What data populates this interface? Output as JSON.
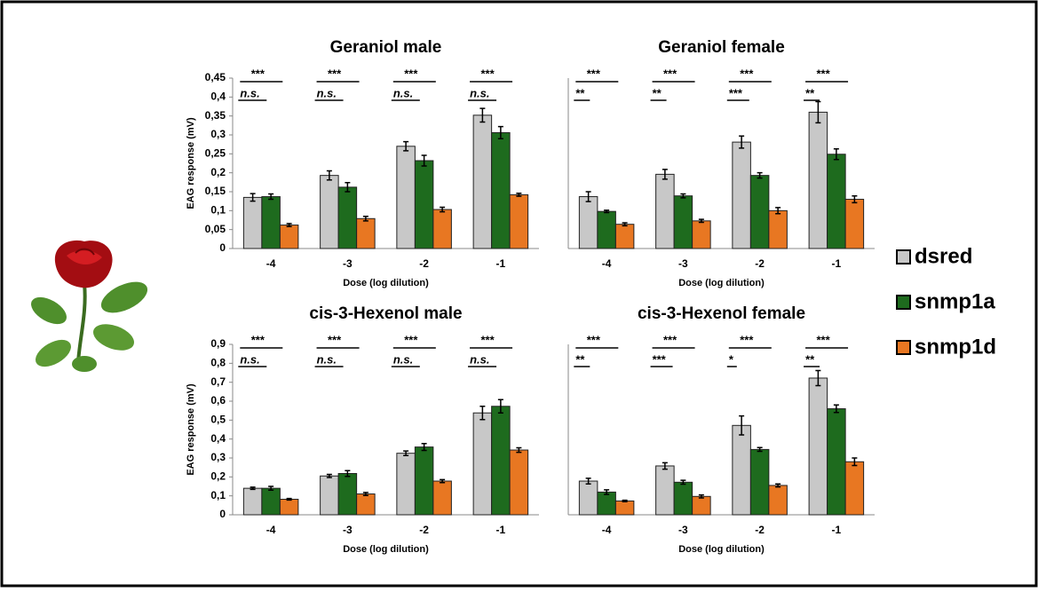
{
  "chart_data": [
    {
      "type": "bar",
      "title": "Geraniol  male",
      "ylabel": "EAG response (mV)",
      "xlabel": "Dose (log dilution)",
      "categories": [
        "-4",
        "-3",
        "-2",
        "-1"
      ],
      "ylim": [
        0,
        0.45
      ],
      "yticks": [
        0,
        {
          "value": 0.05,
          "label": "0,05"
        },
        {
          "value": 0.1,
          "label": "0,1"
        },
        {
          "value": 0.15,
          "label": "0,15"
        },
        {
          "value": 0.2,
          "label": "0,2"
        },
        {
          "value": 0.25,
          "label": "0,25"
        },
        {
          "value": 0.3,
          "label": "0,3"
        },
        {
          "value": 0.35,
          "label": "0,35"
        },
        {
          "value": 0.4,
          "label": "0,4"
        },
        {
          "value": 0.45,
          "label": "0,45"
        }
      ],
      "series": [
        {
          "name": "dsred",
          "color": "#c8c8c8",
          "values": [
            0.135,
            0.193,
            0.27,
            0.352
          ],
          "errors": [
            0.01,
            0.012,
            0.012,
            0.018
          ]
        },
        {
          "name": "snmp1a",
          "color": "#1e6b1e",
          "values": [
            0.137,
            0.162,
            0.232,
            0.306
          ],
          "errors": [
            0.007,
            0.012,
            0.014,
            0.016
          ]
        },
        {
          "name": "snmp1d",
          "color": "#e87722",
          "values": [
            0.062,
            0.079,
            0.103,
            0.142
          ],
          "errors": [
            0.004,
            0.006,
            0.006,
            0.004
          ]
        }
      ],
      "significance": [
        [
          "***",
          "n.s."
        ],
        [
          "***",
          "n.s."
        ],
        [
          "***",
          "n.s."
        ],
        [
          "***",
          "n.s."
        ]
      ]
    },
    {
      "type": "bar",
      "title": "Geraniol  female",
      "xlabel": "Dose (log dilution)",
      "categories": [
        "-4",
        "-3",
        "-2",
        "-1"
      ],
      "ylim": [
        0,
        0.45
      ],
      "series": [
        {
          "name": "dsred",
          "color": "#c8c8c8",
          "values": [
            0.137,
            0.196,
            0.281,
            0.36
          ],
          "errors": [
            0.013,
            0.013,
            0.016,
            0.028
          ]
        },
        {
          "name": "snmp1a",
          "color": "#1e6b1e",
          "values": [
            0.098,
            0.139,
            0.193,
            0.249
          ],
          "errors": [
            0.003,
            0.005,
            0.007,
            0.014
          ]
        },
        {
          "name": "snmp1d",
          "color": "#e87722",
          "values": [
            0.064,
            0.073,
            0.1,
            0.13
          ],
          "errors": [
            0.004,
            0.004,
            0.008,
            0.009
          ]
        }
      ],
      "significance": [
        [
          "***",
          "**"
        ],
        [
          "***",
          "**"
        ],
        [
          "***",
          "***"
        ],
        [
          "***",
          "**"
        ]
      ]
    },
    {
      "type": "bar",
      "title": "cis-3-Hexenol  male",
      "ylabel": "EAG response (mV)",
      "xlabel": "Dose (log dilution)",
      "categories": [
        "-4",
        "-3",
        "-2",
        "-1"
      ],
      "ylim": [
        0,
        0.9
      ],
      "yticks": [
        0,
        {
          "value": 0.1,
          "label": "0,1"
        },
        {
          "value": 0.2,
          "label": "0,2"
        },
        {
          "value": 0.3,
          "label": "0,3"
        },
        {
          "value": 0.4,
          "label": "0,4"
        },
        {
          "value": 0.5,
          "label": "0,5"
        },
        {
          "value": 0.6,
          "label": "0,6"
        },
        {
          "value": 0.7,
          "label": "0,7"
        },
        {
          "value": 0.8,
          "label": "0,8"
        },
        {
          "value": 0.9,
          "label": "0,9"
        }
      ],
      "series": [
        {
          "name": "dsred",
          "color": "#c8c8c8",
          "values": [
            0.14,
            0.205,
            0.325,
            0.538
          ],
          "errors": [
            0.006,
            0.008,
            0.012,
            0.035
          ]
        },
        {
          "name": "snmp1a",
          "color": "#1e6b1e",
          "values": [
            0.14,
            0.218,
            0.358,
            0.573
          ],
          "errors": [
            0.01,
            0.015,
            0.018,
            0.035
          ]
        },
        {
          "name": "snmp1d",
          "color": "#e87722",
          "values": [
            0.082,
            0.11,
            0.178,
            0.342
          ],
          "errors": [
            0.004,
            0.008,
            0.008,
            0.012
          ]
        }
      ],
      "significance": [
        [
          "***",
          "n.s."
        ],
        [
          "***",
          "n.s."
        ],
        [
          "***",
          "n.s."
        ],
        [
          "***",
          "n.s."
        ]
      ]
    },
    {
      "type": "bar",
      "title": "cis-3-Hexenol  female",
      "xlabel": "Dose (log dilution)",
      "categories": [
        "-4",
        "-3",
        "-2",
        "-1"
      ],
      "ylim": [
        0,
        0.9
      ],
      "series": [
        {
          "name": "dsred",
          "color": "#c8c8c8",
          "values": [
            0.178,
            0.258,
            0.472,
            0.722
          ],
          "errors": [
            0.015,
            0.017,
            0.05,
            0.04
          ]
        },
        {
          "name": "snmp1a",
          "color": "#1e6b1e",
          "values": [
            0.12,
            0.172,
            0.345,
            0.56
          ],
          "errors": [
            0.012,
            0.01,
            0.01,
            0.02
          ]
        },
        {
          "name": "snmp1d",
          "color": "#e87722",
          "values": [
            0.073,
            0.097,
            0.155,
            0.28
          ],
          "errors": [
            0.004,
            0.008,
            0.008,
            0.02
          ]
        }
      ],
      "significance": [
        [
          "***",
          "**"
        ],
        [
          "***",
          "***"
        ],
        [
          "***",
          "*"
        ],
        [
          "***",
          "**"
        ]
      ]
    }
  ]
}
